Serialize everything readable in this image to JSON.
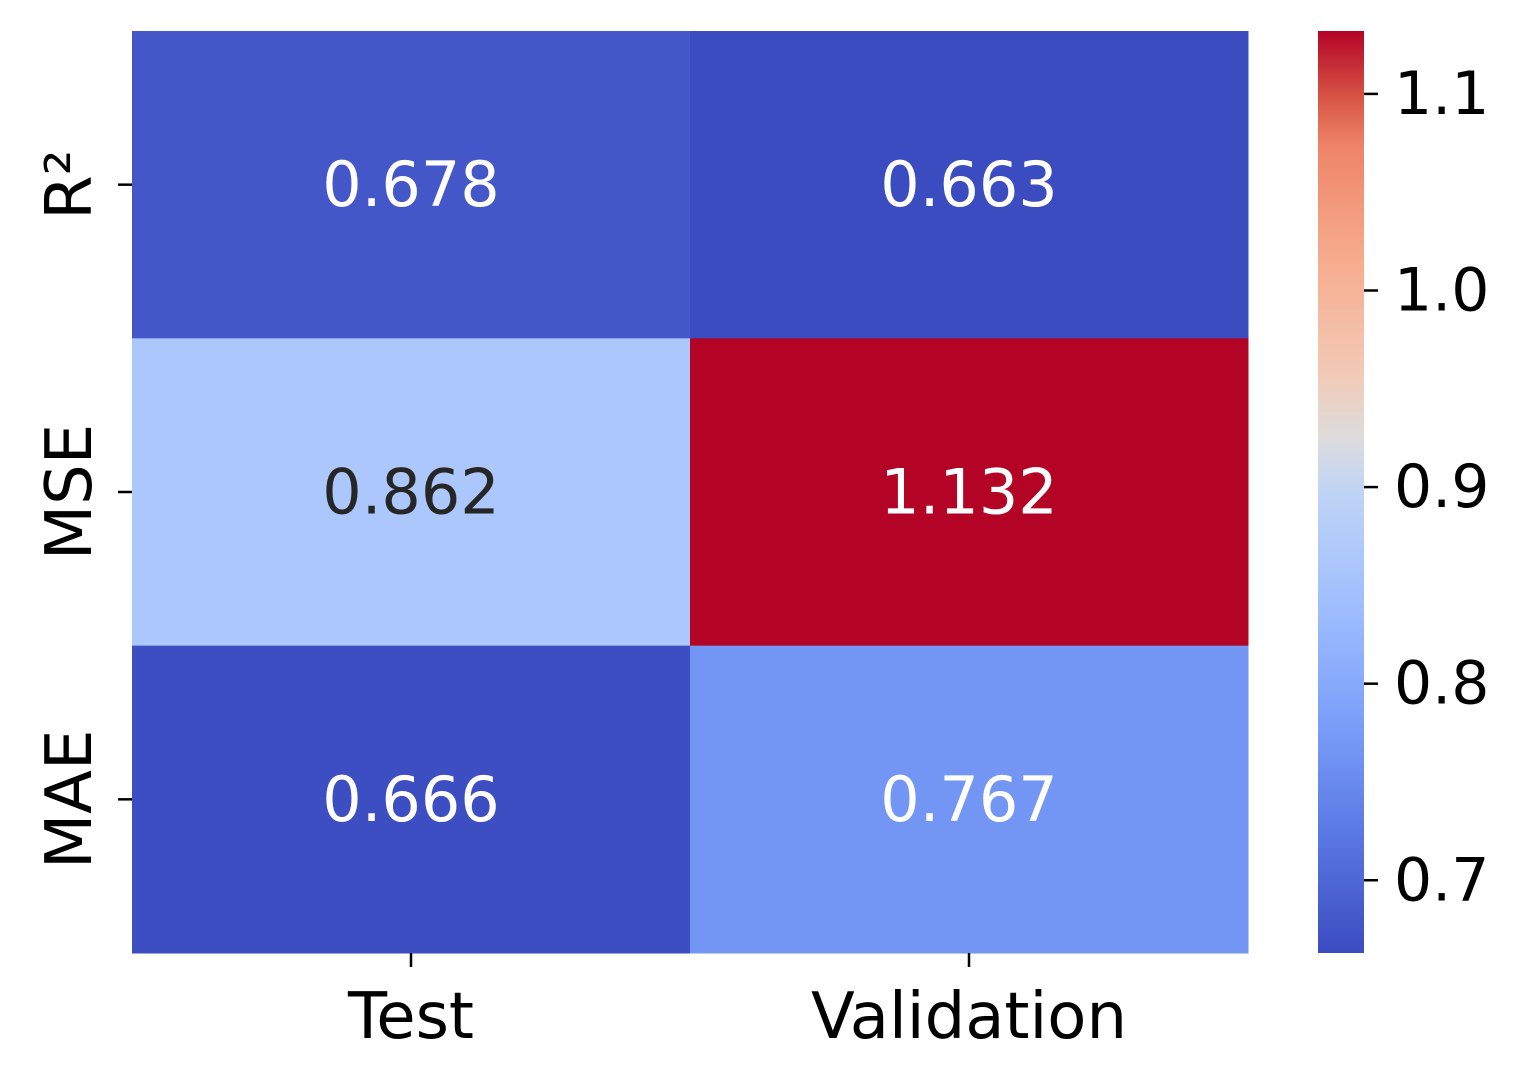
{
  "chart_data": {
    "type": "heatmap",
    "x_categories": [
      "Test",
      "Validation"
    ],
    "y_categories": [
      "R²",
      "MSE",
      "MAE"
    ],
    "values": [
      [
        0.678,
        0.663
      ],
      [
        0.862,
        1.132
      ],
      [
        0.666,
        0.767
      ]
    ],
    "value_labels": [
      [
        "0.678",
        "0.663"
      ],
      [
        "0.862",
        "1.132"
      ],
      [
        "0.666",
        "0.767"
      ]
    ],
    "colormap": "coolwarm",
    "color_range": [
      0.663,
      1.132
    ],
    "colorbar": {
      "ticks": [
        0.7,
        0.8,
        0.9,
        1.0,
        1.1
      ],
      "tick_labels": [
        "0.7",
        "0.8",
        "0.9",
        "1.0",
        "1.1"
      ],
      "placement": "right"
    },
    "title": "",
    "xlabel": "",
    "ylabel": "",
    "grid": false
  }
}
